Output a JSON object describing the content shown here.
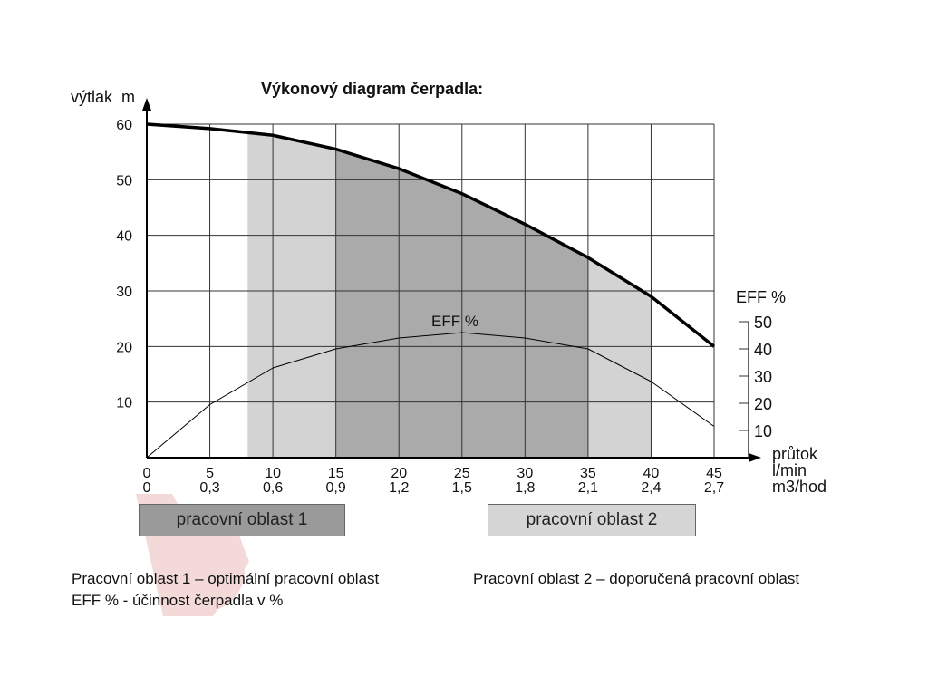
{
  "chart_data": {
    "type": "line",
    "title": "Výkonový diagram čerpadla:",
    "ylabel": "výtlak  m",
    "y2label": "EFF %",
    "xlabel_lines": [
      "průtok",
      "l/min",
      "m3/hod"
    ],
    "x_ticks": [
      0,
      5,
      10,
      15,
      20,
      25,
      30,
      35,
      40,
      45
    ],
    "x_ticks_secondary": [
      "0",
      "0,3",
      "0,6",
      "0,9",
      "1,2",
      "1,5",
      "1,8",
      "2,1",
      "2,4",
      "2,7"
    ],
    "y_ticks": [
      10,
      20,
      30,
      40,
      50,
      60
    ],
    "y2_ticks": [
      10,
      20,
      30,
      40,
      50
    ],
    "xlim": [
      0,
      45
    ],
    "ylim": [
      0,
      60
    ],
    "y2lim": [
      0,
      50
    ],
    "grid": true,
    "series": [
      {
        "name": "výtlak",
        "x": [
          0,
          5,
          10,
          15,
          20,
          25,
          30,
          35,
          40,
          45
        ],
        "y": [
          60,
          59.2,
          58,
          55.5,
          52,
          47.5,
          42,
          36,
          29,
          20
        ]
      },
      {
        "name": "EFF %",
        "axis": "y2",
        "x": [
          0,
          5,
          10,
          15,
          20,
          25,
          30,
          35,
          40,
          45
        ],
        "y": [
          0,
          19.5,
          33,
          40,
          44,
          46,
          44,
          40,
          28,
          11.5
        ]
      }
    ],
    "eff_label": "EFF %",
    "regions": [
      {
        "name": "pracovní oblast 2",
        "x": [
          8,
          40
        ],
        "color": "#d3d3d3"
      },
      {
        "name": "pracovní oblast 1",
        "x": [
          15,
          35
        ],
        "color": "#aaaaaa"
      }
    ]
  },
  "legend": {
    "area1": "pracovní oblast 1",
    "area2": "pracovní oblast 2",
    "area1_color": "#9a9a9a",
    "area2_color": "#d6d6d6"
  },
  "notes": {
    "line1": "Pracovní oblast 1 – optimální pracovní oblast",
    "line2": "EFF % - účinnost čerpadla v %",
    "line3": "Pracovní oblast 2 – doporučená pracovní oblast"
  }
}
